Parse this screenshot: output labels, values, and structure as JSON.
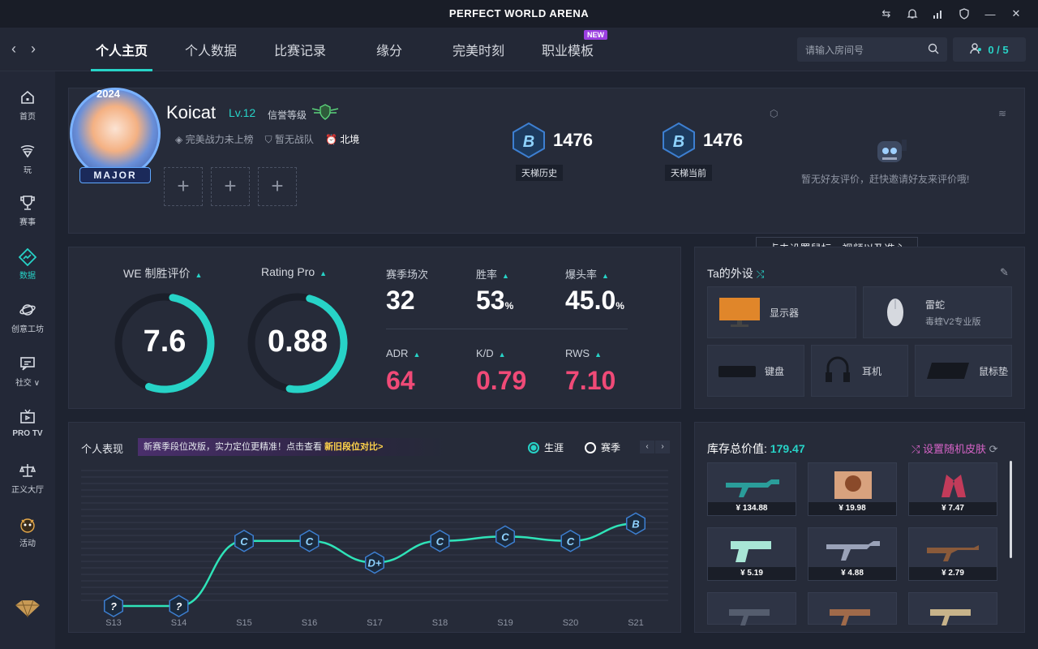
{
  "app": {
    "title": "PERFECT WORLD ARENA"
  },
  "nav": {
    "tabs": [
      {
        "label": "个人主页"
      },
      {
        "label": "个人数据"
      },
      {
        "label": "比赛记录"
      },
      {
        "label": "缘分"
      },
      {
        "label": "完美时刻"
      },
      {
        "label": "职业模板",
        "badge": "NEW"
      }
    ],
    "room_search_placeholder": "请输入房间号",
    "party_count": "0 / 5"
  },
  "sidebar": {
    "items": [
      {
        "label": "首页",
        "icon": "home-icon"
      },
      {
        "label": "玩",
        "icon": "play-icon"
      },
      {
        "label": "赛事",
        "icon": "trophy-icon"
      },
      {
        "label": "数据",
        "icon": "data-icon"
      },
      {
        "label": "创意工坊",
        "icon": "workshop-icon"
      },
      {
        "label": "社交 ∨",
        "icon": "social-icon"
      },
      {
        "label": "PRO TV",
        "icon": "tv-icon"
      },
      {
        "label": "正义大厅",
        "icon": "justice-icon"
      },
      {
        "label": "活动",
        "icon": "event-icon"
      }
    ]
  },
  "profile": {
    "avatar_badge": "MAJOR",
    "avatar_year": "2024",
    "name": "Koicat",
    "level": "Lv.12",
    "credit_label": "信誉等级",
    "power_rank": "完美战力未上榜",
    "team": "暂无战队",
    "region": "北境"
  },
  "ladder": [
    {
      "grade": "B",
      "score": "1476",
      "label": "天梯历史"
    },
    {
      "grade": "B",
      "score": "1476",
      "label": "天梯当前"
    }
  ],
  "friend_eval": "暂无好友评价，赶快邀请好友来评价哦!",
  "tooltip": "点击设置鼠标、视频以及准心",
  "stats": {
    "we_label": "WE 制胜评价",
    "we_value": "7.6",
    "rating_label": "Rating Pro",
    "rating_value": "0.88",
    "items": [
      {
        "label": "赛季场次",
        "value": "32",
        "unit": ""
      },
      {
        "label": "胜率",
        "value": "53",
        "unit": "%"
      },
      {
        "label": "爆头率",
        "value": "45.0",
        "unit": "%"
      },
      {
        "label": "ADR",
        "value": "64",
        "unit": ""
      },
      {
        "label": "K/D",
        "value": "0.79",
        "unit": ""
      },
      {
        "label": "RWS",
        "value": "7.10",
        "unit": ""
      }
    ]
  },
  "gear": {
    "title": "Ta的外设",
    "items": [
      {
        "label": "显示器"
      },
      {
        "label": "雷蛇",
        "sub": "毒蝰V2专业版"
      },
      {
        "label": "键盘"
      },
      {
        "label": "耳机"
      },
      {
        "label": "鼠标垫"
      }
    ]
  },
  "performance": {
    "title": "个人表现",
    "notice": "新赛季段位改版，实力定位更精准！点击查看",
    "notice_link": "新旧段位对比>",
    "radio_career": "生涯",
    "radio_season": "赛季"
  },
  "chart_data": {
    "type": "line",
    "x": [
      "S13",
      "S14",
      "S15",
      "S16",
      "S17",
      "S18",
      "S19",
      "S20",
      "S21"
    ],
    "grades": [
      "?",
      "?",
      "C",
      "C",
      "D+",
      "C",
      "C",
      "C",
      "B"
    ],
    "values": [
      0,
      0,
      3,
      3,
      2,
      3,
      3.2,
      3,
      3.8
    ]
  },
  "inventory": {
    "label": "库存总价值:",
    "value": "179.47",
    "random_skin": "设置随机皮肤",
    "prices": [
      "¥ 134.88",
      "¥ 19.98",
      "¥ 7.47",
      "¥ 5.19",
      "¥ 4.88",
      "¥ 2.79"
    ]
  }
}
